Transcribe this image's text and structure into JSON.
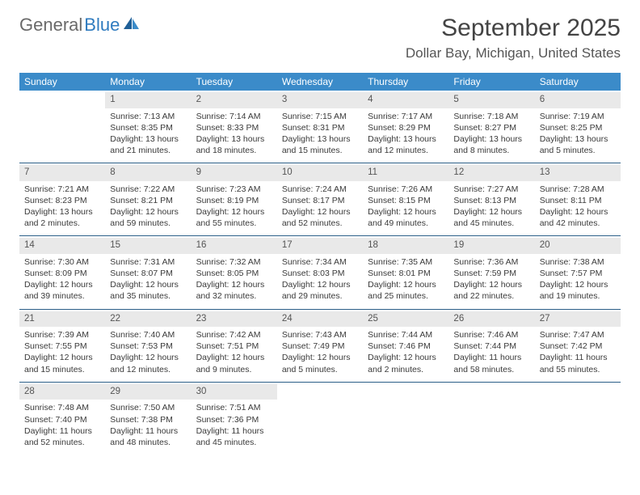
{
  "logo": {
    "text1": "General",
    "text2": "Blue"
  },
  "title": "September 2025",
  "location": "Dollar Bay, Michigan, United States",
  "colors": {
    "header_bg": "#3b8bc9",
    "header_text": "#ffffff",
    "rule": "#2b5f88",
    "daynum_bg": "#e9e9e9",
    "logo_gray": "#6a6a6a",
    "logo_blue": "#2f7bbf",
    "page_bg": "#ffffff"
  },
  "typography": {
    "title_fontsize": 30,
    "location_fontsize": 17,
    "dayname_fontsize": 12,
    "cell_fontsize": 10.5
  },
  "day_names": [
    "Sunday",
    "Monday",
    "Tuesday",
    "Wednesday",
    "Thursday",
    "Friday",
    "Saturday"
  ],
  "grid": {
    "columns": 7,
    "rows": 5,
    "first_weekday_offset": 1
  },
  "weeks": [
    [
      null,
      {
        "n": "1",
        "sr": "Sunrise: 7:13 AM",
        "ss": "Sunset: 8:35 PM",
        "d1": "Daylight: 13 hours",
        "d2": "and 21 minutes."
      },
      {
        "n": "2",
        "sr": "Sunrise: 7:14 AM",
        "ss": "Sunset: 8:33 PM",
        "d1": "Daylight: 13 hours",
        "d2": "and 18 minutes."
      },
      {
        "n": "3",
        "sr": "Sunrise: 7:15 AM",
        "ss": "Sunset: 8:31 PM",
        "d1": "Daylight: 13 hours",
        "d2": "and 15 minutes."
      },
      {
        "n": "4",
        "sr": "Sunrise: 7:17 AM",
        "ss": "Sunset: 8:29 PM",
        "d1": "Daylight: 13 hours",
        "d2": "and 12 minutes."
      },
      {
        "n": "5",
        "sr": "Sunrise: 7:18 AM",
        "ss": "Sunset: 8:27 PM",
        "d1": "Daylight: 13 hours",
        "d2": "and 8 minutes."
      },
      {
        "n": "6",
        "sr": "Sunrise: 7:19 AM",
        "ss": "Sunset: 8:25 PM",
        "d1": "Daylight: 13 hours",
        "d2": "and 5 minutes."
      }
    ],
    [
      {
        "n": "7",
        "sr": "Sunrise: 7:21 AM",
        "ss": "Sunset: 8:23 PM",
        "d1": "Daylight: 13 hours",
        "d2": "and 2 minutes."
      },
      {
        "n": "8",
        "sr": "Sunrise: 7:22 AM",
        "ss": "Sunset: 8:21 PM",
        "d1": "Daylight: 12 hours",
        "d2": "and 59 minutes."
      },
      {
        "n": "9",
        "sr": "Sunrise: 7:23 AM",
        "ss": "Sunset: 8:19 PM",
        "d1": "Daylight: 12 hours",
        "d2": "and 55 minutes."
      },
      {
        "n": "10",
        "sr": "Sunrise: 7:24 AM",
        "ss": "Sunset: 8:17 PM",
        "d1": "Daylight: 12 hours",
        "d2": "and 52 minutes."
      },
      {
        "n": "11",
        "sr": "Sunrise: 7:26 AM",
        "ss": "Sunset: 8:15 PM",
        "d1": "Daylight: 12 hours",
        "d2": "and 49 minutes."
      },
      {
        "n": "12",
        "sr": "Sunrise: 7:27 AM",
        "ss": "Sunset: 8:13 PM",
        "d1": "Daylight: 12 hours",
        "d2": "and 45 minutes."
      },
      {
        "n": "13",
        "sr": "Sunrise: 7:28 AM",
        "ss": "Sunset: 8:11 PM",
        "d1": "Daylight: 12 hours",
        "d2": "and 42 minutes."
      }
    ],
    [
      {
        "n": "14",
        "sr": "Sunrise: 7:30 AM",
        "ss": "Sunset: 8:09 PM",
        "d1": "Daylight: 12 hours",
        "d2": "and 39 minutes."
      },
      {
        "n": "15",
        "sr": "Sunrise: 7:31 AM",
        "ss": "Sunset: 8:07 PM",
        "d1": "Daylight: 12 hours",
        "d2": "and 35 minutes."
      },
      {
        "n": "16",
        "sr": "Sunrise: 7:32 AM",
        "ss": "Sunset: 8:05 PM",
        "d1": "Daylight: 12 hours",
        "d2": "and 32 minutes."
      },
      {
        "n": "17",
        "sr": "Sunrise: 7:34 AM",
        "ss": "Sunset: 8:03 PM",
        "d1": "Daylight: 12 hours",
        "d2": "and 29 minutes."
      },
      {
        "n": "18",
        "sr": "Sunrise: 7:35 AM",
        "ss": "Sunset: 8:01 PM",
        "d1": "Daylight: 12 hours",
        "d2": "and 25 minutes."
      },
      {
        "n": "19",
        "sr": "Sunrise: 7:36 AM",
        "ss": "Sunset: 7:59 PM",
        "d1": "Daylight: 12 hours",
        "d2": "and 22 minutes."
      },
      {
        "n": "20",
        "sr": "Sunrise: 7:38 AM",
        "ss": "Sunset: 7:57 PM",
        "d1": "Daylight: 12 hours",
        "d2": "and 19 minutes."
      }
    ],
    [
      {
        "n": "21",
        "sr": "Sunrise: 7:39 AM",
        "ss": "Sunset: 7:55 PM",
        "d1": "Daylight: 12 hours",
        "d2": "and 15 minutes."
      },
      {
        "n": "22",
        "sr": "Sunrise: 7:40 AM",
        "ss": "Sunset: 7:53 PM",
        "d1": "Daylight: 12 hours",
        "d2": "and 12 minutes."
      },
      {
        "n": "23",
        "sr": "Sunrise: 7:42 AM",
        "ss": "Sunset: 7:51 PM",
        "d1": "Daylight: 12 hours",
        "d2": "and 9 minutes."
      },
      {
        "n": "24",
        "sr": "Sunrise: 7:43 AM",
        "ss": "Sunset: 7:49 PM",
        "d1": "Daylight: 12 hours",
        "d2": "and 5 minutes."
      },
      {
        "n": "25",
        "sr": "Sunrise: 7:44 AM",
        "ss": "Sunset: 7:46 PM",
        "d1": "Daylight: 12 hours",
        "d2": "and 2 minutes."
      },
      {
        "n": "26",
        "sr": "Sunrise: 7:46 AM",
        "ss": "Sunset: 7:44 PM",
        "d1": "Daylight: 11 hours",
        "d2": "and 58 minutes."
      },
      {
        "n": "27",
        "sr": "Sunrise: 7:47 AM",
        "ss": "Sunset: 7:42 PM",
        "d1": "Daylight: 11 hours",
        "d2": "and 55 minutes."
      }
    ],
    [
      {
        "n": "28",
        "sr": "Sunrise: 7:48 AM",
        "ss": "Sunset: 7:40 PM",
        "d1": "Daylight: 11 hours",
        "d2": "and 52 minutes."
      },
      {
        "n": "29",
        "sr": "Sunrise: 7:50 AM",
        "ss": "Sunset: 7:38 PM",
        "d1": "Daylight: 11 hours",
        "d2": "and 48 minutes."
      },
      {
        "n": "30",
        "sr": "Sunrise: 7:51 AM",
        "ss": "Sunset: 7:36 PM",
        "d1": "Daylight: 11 hours",
        "d2": "and 45 minutes."
      },
      null,
      null,
      null,
      null
    ]
  ]
}
